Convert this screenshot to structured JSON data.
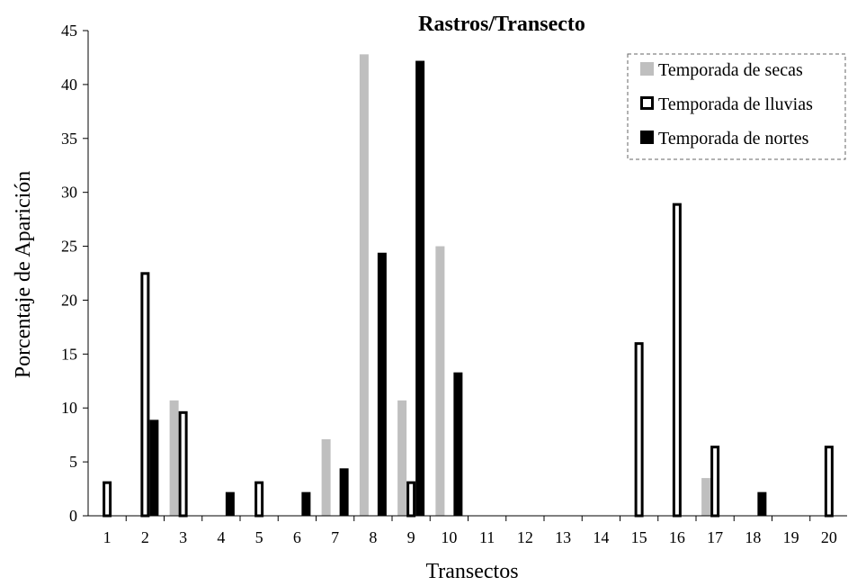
{
  "chart_data": {
    "type": "bar",
    "title": "Rastros/Transecto",
    "xlabel": "Transectos",
    "ylabel": "Porcentaje de Aparición",
    "ylim": [
      0,
      45
    ],
    "yticks": [
      0,
      5,
      10,
      15,
      20,
      25,
      30,
      35,
      40,
      45
    ],
    "categories": [
      "1",
      "2",
      "3",
      "4",
      "5",
      "6",
      "7",
      "8",
      "9",
      "10",
      "11",
      "12",
      "13",
      "14",
      "15",
      "16",
      "17",
      "18",
      "19",
      "20"
    ],
    "legend_position": "top-right",
    "series": [
      {
        "name": "Temporada de secas",
        "color": "#bfbfbf",
        "style": "filled",
        "values": [
          0,
          0,
          10.7,
          0,
          0,
          0,
          7.1,
          42.8,
          10.7,
          25,
          0,
          0,
          0,
          0,
          0,
          0,
          3.5,
          0,
          0,
          0
        ]
      },
      {
        "name": "Temporada de lluvias",
        "color": "#000000",
        "style": "outline",
        "values": [
          3.2,
          22.6,
          9.7,
          0,
          3.2,
          0,
          0,
          0,
          3.2,
          0,
          0,
          0,
          0,
          0,
          16.1,
          29,
          6.5,
          0,
          0,
          6.5
        ]
      },
      {
        "name": "Temporada de nortes",
        "color": "#000000",
        "style": "filled",
        "values": [
          0,
          8.9,
          0,
          2.2,
          0,
          2.2,
          4.4,
          24.4,
          42.2,
          13.3,
          0,
          0,
          0,
          0,
          0,
          0,
          0,
          2.2,
          0,
          0
        ]
      }
    ]
  }
}
